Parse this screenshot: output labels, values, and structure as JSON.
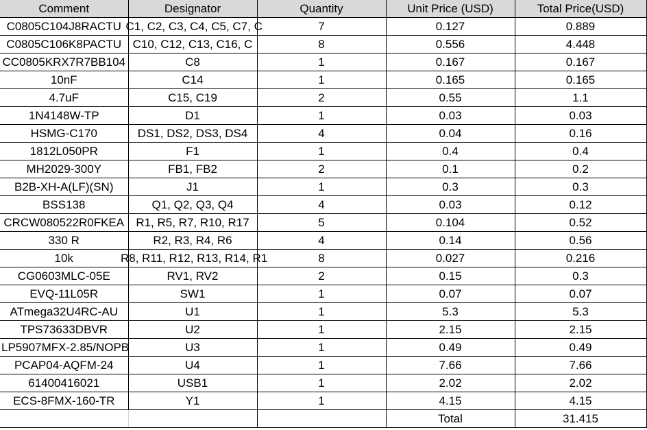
{
  "headers": {
    "comment": "Comment",
    "designator": "Designator",
    "quantity": "Quantity",
    "unit_price": "Unit Price (USD)",
    "total_price": "Total Price(USD)"
  },
  "rows": [
    {
      "comment": "C0805C104J8RACTU",
      "designator": "C1, C2, C3, C4, C5, C7, C",
      "quantity": "7",
      "unit_price": "0.127",
      "total_price": "0.889"
    },
    {
      "comment": "C0805C106K8PACTU",
      "designator": "C10, C12, C13, C16, C",
      "quantity": "8",
      "unit_price": "0.556",
      "total_price": "4.448"
    },
    {
      "comment": "CC0805KRX7R7BB104",
      "designator": "C8",
      "quantity": "1",
      "unit_price": "0.167",
      "total_price": "0.167"
    },
    {
      "comment": "10nF",
      "designator": "C14",
      "quantity": "1",
      "unit_price": "0.165",
      "total_price": "0.165"
    },
    {
      "comment": "4.7uF",
      "designator": "C15, C19",
      "quantity": "2",
      "unit_price": "0.55",
      "total_price": "1.1"
    },
    {
      "comment": "1N4148W-TP",
      "designator": "D1",
      "quantity": "1",
      "unit_price": "0.03",
      "total_price": "0.03"
    },
    {
      "comment": "HSMG-C170",
      "designator": "DS1, DS2, DS3, DS4",
      "quantity": "4",
      "unit_price": "0.04",
      "total_price": "0.16"
    },
    {
      "comment": "1812L050PR",
      "designator": "F1",
      "quantity": "1",
      "unit_price": "0.4",
      "total_price": "0.4"
    },
    {
      "comment": "MH2029-300Y",
      "designator": "FB1, FB2",
      "quantity": "2",
      "unit_price": "0.1",
      "total_price": "0.2"
    },
    {
      "comment": "B2B-XH-A(LF)(SN)",
      "designator": "J1",
      "quantity": "1",
      "unit_price": "0.3",
      "total_price": "0.3"
    },
    {
      "comment": "BSS138",
      "designator": "Q1, Q2, Q3, Q4",
      "quantity": "4",
      "unit_price": "0.03",
      "total_price": "0.12"
    },
    {
      "comment": "CRCW080522R0FKEA",
      "designator": "R1, R5, R7, R10, R17",
      "quantity": "5",
      "unit_price": "0.104",
      "total_price": "0.52"
    },
    {
      "comment": "330 R",
      "designator": "R2, R3, R4, R6",
      "quantity": "4",
      "unit_price": "0.14",
      "total_price": "0.56"
    },
    {
      "comment": "10k",
      "designator": "R8, R11, R12, R13, R14, R1",
      "quantity": "8",
      "unit_price": "0.027",
      "total_price": "0.216"
    },
    {
      "comment": "CG0603MLC-05E",
      "designator": "RV1, RV2",
      "quantity": "2",
      "unit_price": "0.15",
      "total_price": "0.3"
    },
    {
      "comment": "EVQ-11L05R",
      "designator": "SW1",
      "quantity": "1",
      "unit_price": "0.07",
      "total_price": "0.07"
    },
    {
      "comment": "ATmega32U4RC-AU",
      "designator": "U1",
      "quantity": "1",
      "unit_price": "5.3",
      "total_price": "5.3"
    },
    {
      "comment": "TPS73633DBVR",
      "designator": "U2",
      "quantity": "1",
      "unit_price": "2.15",
      "total_price": "2.15"
    },
    {
      "comment": "LP5907MFX-2.85/NOPB",
      "designator": "U3",
      "quantity": "1",
      "unit_price": "0.49",
      "total_price": "0.49"
    },
    {
      "comment": "PCAP04-AQFM-24",
      "designator": "U4",
      "quantity": "1",
      "unit_price": "7.66",
      "total_price": "7.66"
    },
    {
      "comment": "61400416021",
      "designator": "USB1",
      "quantity": "1",
      "unit_price": "2.02",
      "total_price": "2.02"
    },
    {
      "comment": "ECS-8FMX-160-TR",
      "designator": "Y1",
      "quantity": "1",
      "unit_price": "4.15",
      "total_price": "4.15"
    }
  ],
  "footer": {
    "total_label": "Total",
    "total_value": "31.415"
  }
}
